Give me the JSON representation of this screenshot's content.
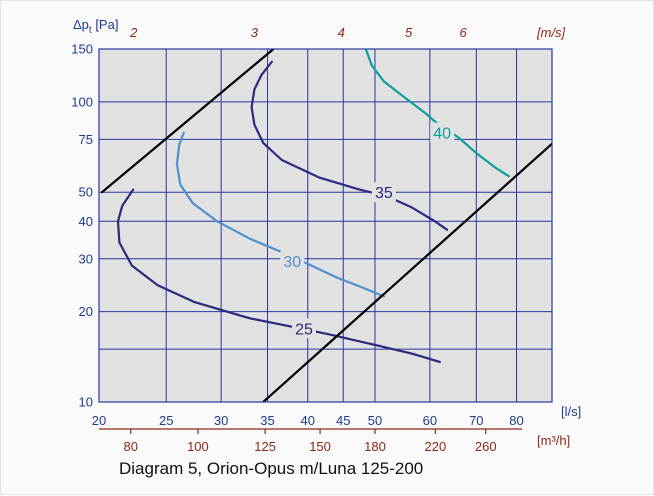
{
  "colors": {
    "plot_bg": "#e1e1e1",
    "grid_blue": "#27379c",
    "axis_blue_text": "#1f3c8c",
    "axis_red": "#8b2a17",
    "limit_lines": "#000000"
  },
  "caption": "Diagram 5, Orion-Opus m/Luna 125-200",
  "chart_data": {
    "type": "line",
    "x_scale": "log",
    "y_scale": "log",
    "xlim": [
      20,
      90
    ],
    "ylim": [
      10,
      150
    ],
    "y_axis_label": "Δpt [Pa]",
    "y_ticks": [
      10,
      20,
      30,
      40,
      50,
      75,
      100,
      150
    ],
    "y_grid_extra": [
      15
    ],
    "x_axis_unit": "[l/s]",
    "x_ticks": [
      20,
      25,
      30,
      35,
      40,
      45,
      50,
      60,
      70,
      80
    ],
    "x_grid_extra": [
      90
    ],
    "secondary_x_bottom": {
      "unit": "[m³/h]",
      "ticks": [
        80,
        100,
        125,
        150,
        180,
        220,
        260
      ]
    },
    "secondary_x_top": {
      "unit": "[m/s]",
      "ticks": [
        {
          "label": "2",
          "x": 22.45
        },
        {
          "label": "3",
          "x": 33.5
        },
        {
          "label": "4",
          "x": 44.7
        },
        {
          "label": "5",
          "x": 55.9
        },
        {
          "label": "6",
          "x": 67.0
        }
      ]
    },
    "series": [
      {
        "name": "25",
        "color": "#2a2a7c",
        "label_at": [
          39.5,
          17.6
        ],
        "points": [
          [
            22.4,
            51
          ],
          [
            21.6,
            45
          ],
          [
            21.3,
            40
          ],
          [
            21.4,
            34
          ],
          [
            22.3,
            28.5
          ],
          [
            24.3,
            24.5
          ],
          [
            27.5,
            21.5
          ],
          [
            33,
            19
          ],
          [
            38,
            17.8
          ],
          [
            43,
            16.8
          ],
          [
            50,
            15.5
          ],
          [
            56.5,
            14.5
          ],
          [
            62,
            13.6
          ]
        ]
      },
      {
        "name": "30",
        "color": "#4f8fcd",
        "label_at": [
          38,
          29.5
        ],
        "points": [
          [
            26.5,
            79
          ],
          [
            26.1,
            72
          ],
          [
            25.9,
            62
          ],
          [
            26.2,
            53
          ],
          [
            27.3,
            46
          ],
          [
            29.6,
            40
          ],
          [
            33,
            35
          ],
          [
            38,
            30.5
          ],
          [
            44,
            26
          ],
          [
            49,
            23.6
          ],
          [
            51.5,
            22.5
          ]
        ]
      },
      {
        "name": "35",
        "color": "#2c2a82",
        "label_at": [
          51.5,
          50
        ],
        "points": [
          [
            35.5,
            136
          ],
          [
            34.3,
            123
          ],
          [
            33.5,
            110
          ],
          [
            33.2,
            96
          ],
          [
            33.5,
            84
          ],
          [
            34.5,
            73
          ],
          [
            36.7,
            64
          ],
          [
            41.5,
            56
          ],
          [
            47.5,
            51
          ],
          [
            52,
            48.5
          ],
          [
            56.5,
            44.5
          ],
          [
            61,
            40
          ],
          [
            63.5,
            37.5
          ]
        ]
      },
      {
        "name": "40",
        "color": "#0e9e9c",
        "label_at": [
          62.5,
          79
        ],
        "points": [
          [
            48.5,
            150
          ],
          [
            49.5,
            132
          ],
          [
            51.5,
            117
          ],
          [
            55,
            104
          ],
          [
            59,
            92
          ],
          [
            61,
            86
          ],
          [
            66,
            76
          ],
          [
            70,
            67.5
          ],
          [
            74.5,
            60.5
          ],
          [
            78,
            56.5
          ]
        ]
      },
      {
        "name": "",
        "color": "#000000",
        "points": [
          [
            20.2,
            50
          ],
          [
            35.7,
            150
          ]
        ]
      },
      {
        "name": "",
        "color": "#000000",
        "points": [
          [
            34.5,
            10
          ],
          [
            90,
            72.5
          ]
        ]
      }
    ]
  }
}
